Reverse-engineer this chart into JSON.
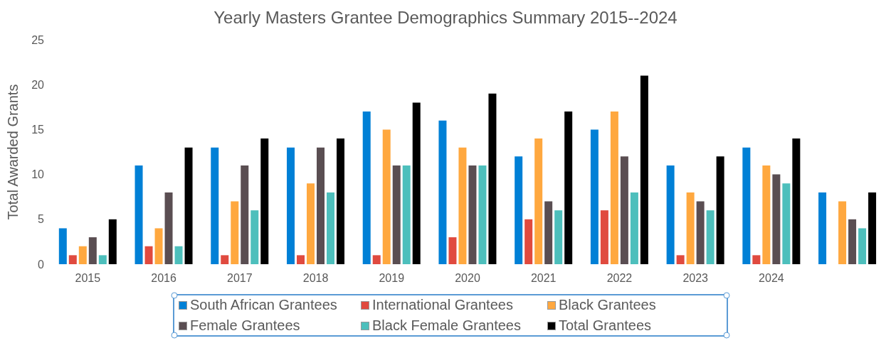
{
  "chart_data": {
    "type": "bar",
    "title": "Yearly Masters Grantee Demographics Summary 2015--2024",
    "ylabel": "Total Awarded Grants",
    "categories": [
      "2015",
      "2016",
      "2017",
      "2018",
      "2019",
      "2020",
      "2021",
      "2022",
      "2023",
      "2024",
      null
    ],
    "series": [
      {
        "name": "South African Grantees",
        "color": "#0080d6",
        "values": [
          4,
          11,
          13,
          13,
          17,
          16,
          12,
          15,
          11,
          13,
          8
        ]
      },
      {
        "name": "International Grantees",
        "color": "#e04a3f",
        "values": [
          1,
          2,
          1,
          1,
          1,
          3,
          5,
          6,
          1,
          1,
          null
        ]
      },
      {
        "name": "Black Grantees",
        "color": "#ffa83f",
        "values": [
          2,
          4,
          7,
          9,
          15,
          13,
          14,
          17,
          8,
          11,
          7
        ]
      },
      {
        "name": "Female Grantees",
        "color": "#5a4e52",
        "values": [
          3,
          8,
          11,
          13,
          11,
          11,
          7,
          12,
          7,
          10,
          5
        ]
      },
      {
        "name": "Black Female Grantees",
        "color": "#4dbfbc",
        "values": [
          1,
          2,
          6,
          8,
          11,
          11,
          6,
          8,
          6,
          9,
          4
        ]
      },
      {
        "name": "Total Grantees",
        "color": "#000000",
        "values": [
          5,
          13,
          14,
          14,
          18,
          19,
          17,
          21,
          12,
          14,
          8
        ]
      }
    ],
    "ylim": [
      0,
      25
    ],
    "yticks": [
      0,
      5,
      10,
      15,
      20,
      25
    ],
    "grid": false,
    "legend": "bottom"
  }
}
